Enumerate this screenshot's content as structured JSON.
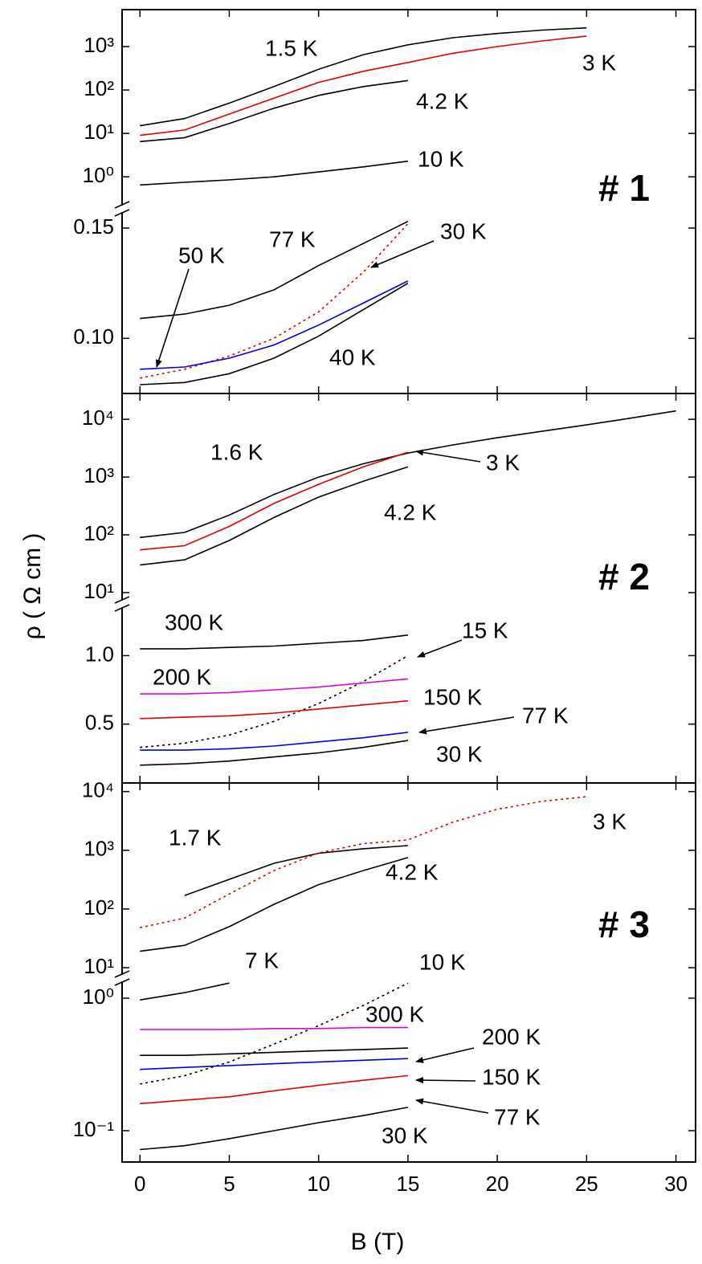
{
  "chart_data": [
    {
      "type": "line",
      "panel_label": "# 1",
      "log_y": true,
      "xlim": [
        -1,
        31.1
      ],
      "ylim": [
        0.2,
        7100
      ],
      "yticks": [
        {
          "value": 1,
          "label": "10⁰"
        },
        {
          "value": 10,
          "label": "10¹"
        },
        {
          "value": 100,
          "label": "10²"
        },
        {
          "value": 1000,
          "label": "10³"
        }
      ],
      "x": [
        0,
        2.5,
        5,
        7.5,
        10,
        12.5,
        15,
        17.5,
        20,
        22.5,
        25
      ],
      "series": [
        {
          "name": "1.5 K",
          "color": "#000000",
          "linestyle": "solid",
          "values": [
            15,
            22,
            50,
            120,
            300,
            650,
            1100,
            1600,
            2000,
            2400,
            2700
          ]
        },
        {
          "name": "3 K",
          "color": "#e00000",
          "linestyle": "solid",
          "values": [
            9,
            12,
            28,
            65,
            150,
            270,
            430,
            700,
            1000,
            1350,
            1750
          ]
        },
        {
          "name": "4.2 K",
          "color": "#000000",
          "linestyle": "solid",
          "values": [
            6.5,
            8,
            17,
            38,
            75,
            120,
            165,
            null,
            null,
            null,
            null
          ]
        },
        {
          "name": "10 K",
          "color": "#000000",
          "linestyle": "solid",
          "values": [
            0.65,
            0.75,
            0.85,
            1.0,
            1.3,
            1.7,
            2.3,
            null,
            null,
            null,
            null
          ]
        }
      ]
    },
    {
      "type": "line",
      "log_y": false,
      "xlim": [
        -1,
        31.1
      ],
      "ylim": [
        0.075,
        0.158
      ],
      "yticks": [
        {
          "value": 0.1,
          "label": "0.10"
        },
        0.15
      ],
      "x": [
        0,
        2.5,
        5,
        7.5,
        10,
        12.5,
        15
      ],
      "series": [
        {
          "name": "77 K",
          "color": "#000000",
          "linestyle": "solid",
          "values": [
            0.109,
            0.111,
            0.115,
            0.122,
            0.133,
            0.143,
            0.153
          ]
        },
        {
          "name": "30 K",
          "color": "#e00000",
          "linestyle": "dotted",
          "values": [
            0.082,
            0.086,
            0.092,
            0.1,
            0.112,
            0.13,
            0.152
          ]
        },
        {
          "name": "50 K",
          "color": "#0000e0",
          "linestyle": "solid",
          "values": [
            0.086,
            0.087,
            0.091,
            0.097,
            0.106,
            0.116,
            0.126
          ]
        },
        {
          "name": "40 K",
          "color": "#000000",
          "linestyle": "solid",
          "values": [
            0.079,
            0.08,
            0.084,
            0.091,
            0.101,
            0.113,
            0.125
          ]
        }
      ]
    },
    {
      "type": "line",
      "panel_label": "# 2",
      "log_y": true,
      "xlim": [
        -1,
        31.1
      ],
      "ylim": [
        6.8,
        28000
      ],
      "yticks": [
        {
          "value": 10,
          "label": "10¹"
        },
        {
          "value": 100,
          "label": "10²"
        },
        {
          "value": 1000,
          "label": "10³"
        },
        {
          "value": 10000,
          "label": "10⁴"
        }
      ],
      "x": [
        0,
        2.5,
        5,
        7.5,
        10,
        12.5,
        15,
        17.5,
        20,
        22.5,
        25,
        27.5,
        30
      ],
      "series": [
        {
          "name": "1.6 K",
          "color": "#000000",
          "linestyle": "solid",
          "values": [
            90,
            110,
            220,
            500,
            1000,
            1700,
            2600,
            3600,
            4800,
            6200,
            8000,
            10500,
            14000
          ]
        },
        {
          "name": "3 K",
          "color": "#e00000",
          "linestyle": "solid",
          "values": [
            55,
            65,
            140,
            350,
            750,
            1500,
            2700,
            null,
            null,
            null,
            null,
            null,
            null
          ]
        },
        {
          "name": "4.2 K",
          "color": "#000000",
          "linestyle": "solid",
          "values": [
            30,
            37,
            80,
            200,
            450,
            850,
            1500,
            null,
            null,
            null,
            null,
            null,
            null
          ]
        }
      ]
    },
    {
      "type": "line",
      "log_y": false,
      "xlim": [
        -1,
        31.1
      ],
      "ylim": [
        0.07,
        1.36
      ],
      "yticks": [
        0.5,
        {
          "value": 1,
          "label": "1.0"
        }
      ],
      "x": [
        0,
        2.5,
        5,
        7.5,
        10,
        12.5,
        15
      ],
      "series": [
        {
          "name": "300 K",
          "color": "#000000",
          "linestyle": "solid",
          "values": [
            1.05,
            1.05,
            1.06,
            1.07,
            1.09,
            1.11,
            1.15
          ]
        },
        {
          "name": "15 K",
          "color": "#000000",
          "linestyle": "dotted",
          "values": [
            0.33,
            0.36,
            0.42,
            0.52,
            0.65,
            0.81,
            1.0
          ]
        },
        {
          "name": "200 K",
          "color": "#e000e0",
          "linestyle": "solid",
          "values": [
            0.72,
            0.72,
            0.73,
            0.75,
            0.77,
            0.8,
            0.83
          ]
        },
        {
          "name": "150 K",
          "color": "#e00000",
          "linestyle": "solid",
          "values": [
            0.54,
            0.55,
            0.56,
            0.58,
            0.61,
            0.64,
            0.67
          ]
        },
        {
          "name": "77 K",
          "color": "#0000e0",
          "linestyle": "solid",
          "values": [
            0.31,
            0.31,
            0.32,
            0.34,
            0.37,
            0.4,
            0.44
          ]
        },
        {
          "name": "30 K",
          "color": "#000000",
          "linestyle": "solid",
          "values": [
            0.2,
            0.21,
            0.23,
            0.26,
            0.29,
            0.33,
            0.38
          ]
        }
      ]
    },
    {
      "type": "line",
      "panel_label": "# 3",
      "log_y": true,
      "xlim": [
        -1,
        31.1
      ],
      "ylim": [
        7.3,
        14000
      ],
      "yticks": [
        {
          "value": 10,
          "label": "10¹"
        },
        {
          "value": 100,
          "label": "10²"
        },
        {
          "value": 1000,
          "label": "10³"
        },
        {
          "value": 10000,
          "label": "10⁴"
        }
      ],
      "x": [
        0,
        2.5,
        5,
        7.5,
        10,
        12.5,
        15,
        17.5,
        20,
        22.5,
        25
      ],
      "series": [
        {
          "name": "1.7 K",
          "color": "#000000",
          "linestyle": "solid",
          "values": [
            null,
            170,
            320,
            600,
            890,
            1060,
            1200,
            null,
            null,
            null,
            null
          ]
        },
        {
          "name": "3 K",
          "color": "#e00000",
          "linestyle": "dotted",
          "values": [
            48,
            70,
            180,
            450,
            900,
            1300,
            1500,
            3000,
            5000,
            6800,
            8200
          ]
        },
        {
          "name": "4.2 K",
          "color": "#000000",
          "linestyle": "solid",
          "values": [
            19,
            24,
            50,
            120,
            260,
            450,
            750,
            null,
            null,
            null,
            null
          ]
        }
      ]
    },
    {
      "type": "line",
      "log_y": true,
      "xlim": [
        -1,
        31.1
      ],
      "ylim": [
        0.058,
        1.34
      ],
      "yticks": [
        {
          "value": 0.1,
          "label": "10⁻¹"
        },
        {
          "value": 1,
          "label": "10⁰"
        }
      ],
      "xticks": [
        0,
        5,
        10,
        15,
        20,
        25,
        30
      ],
      "xlabel": "B (T)",
      "ylabel": "ρ ( Ω cm )",
      "x": [
        0,
        2.5,
        5,
        7.5,
        10,
        12.5,
        15
      ],
      "series": [
        {
          "name": "7 K",
          "color": "#000000",
          "linestyle": "solid",
          "values": [
            0.97,
            1.1,
            1.3,
            null,
            null,
            null,
            null
          ]
        },
        {
          "name": "10 K",
          "color": "#000000",
          "linestyle": "dotted",
          "values": [
            0.225,
            0.26,
            0.33,
            0.45,
            0.62,
            0.88,
            1.3
          ]
        },
        {
          "name": "300 K",
          "color": "#e000e0",
          "linestyle": "solid",
          "values": [
            0.58,
            0.58,
            0.58,
            0.59,
            0.59,
            0.6,
            0.6
          ]
        },
        {
          "name": "200 K",
          "color": "#000000",
          "linestyle": "solid",
          "values": [
            0.37,
            0.37,
            0.38,
            0.39,
            0.4,
            0.41,
            0.42
          ]
        },
        {
          "name": "150 K",
          "color": "#0000e0",
          "linestyle": "solid",
          "values": [
            0.29,
            0.3,
            0.31,
            0.32,
            0.33,
            0.34,
            0.35
          ]
        },
        {
          "name": "77 K",
          "color": "#e00000",
          "linestyle": "solid",
          "values": [
            0.16,
            0.17,
            0.18,
            0.2,
            0.22,
            0.24,
            0.26
          ]
        },
        {
          "name": "30 K",
          "color": "#000000",
          "linestyle": "solid",
          "values": [
            0.072,
            0.077,
            0.087,
            0.1,
            0.115,
            0.13,
            0.15
          ]
        }
      ]
    }
  ]
}
